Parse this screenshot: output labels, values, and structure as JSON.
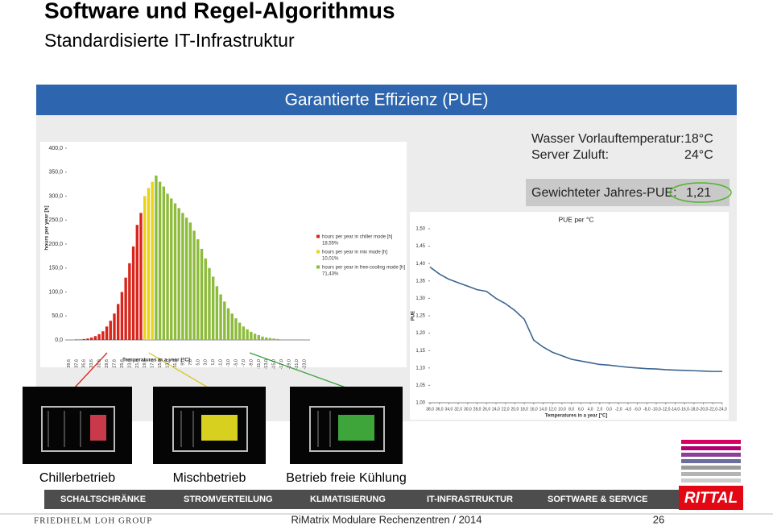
{
  "header": {
    "title": "Software und Regel-Algorithmus",
    "subtitle": "Standardisierte IT-Infrastruktur"
  },
  "panel": {
    "title": "Garantierte Effizienz (PUE)",
    "settings": [
      {
        "label": "Wasser Vorlauftemperatur:",
        "value": "18°C"
      },
      {
        "label": "Server Zuluft:",
        "value": "24°C"
      }
    ],
    "pue": {
      "label": "Gewichteter Jahres-PUE:",
      "value": "1,21"
    }
  },
  "chart_data": [
    {
      "type": "bar",
      "x_label": "Temperatures in a year [°C]",
      "y_label": "hours per year [h]",
      "categories": [
        "39,6",
        null,
        "37,6",
        null,
        "35,6",
        null,
        "33,6",
        null,
        "31,6",
        null,
        "29,6",
        null,
        "27,6",
        null,
        "25,6",
        null,
        "23,6",
        null,
        "21,6",
        null,
        "19,6",
        null,
        "17,6",
        null,
        "15,0",
        null,
        "13,0",
        null,
        "11,0",
        null,
        "9,0",
        null,
        "7,0",
        null,
        "5,0",
        null,
        "3,0",
        null,
        "1,0",
        null,
        "-1,0",
        null,
        "-3,0",
        null,
        "-5,0",
        null,
        "-7,0",
        null,
        "-9,0",
        null,
        "-11,0",
        null,
        "-13,0",
        null,
        "-15,0",
        null,
        "-17,0",
        null,
        "-19,0",
        null,
        "-21,0",
        null,
        "-23,0",
        null
      ],
      "series": [
        {
          "name": "hours per year in chiller mode [h]",
          "share": "18,55%",
          "color": "#d9261c",
          "values": [
            0,
            0,
            1,
            1,
            2,
            3,
            5,
            8,
            12,
            18,
            28,
            40,
            55,
            75,
            100,
            130,
            160,
            195,
            240,
            265,
            null,
            null,
            null,
            null,
            null,
            null,
            null,
            null,
            null,
            null,
            null,
            null,
            null,
            null,
            null,
            null,
            null,
            null,
            null,
            null,
            null,
            null,
            null,
            null,
            null,
            null,
            null,
            null,
            null,
            null,
            null,
            null,
            null,
            null,
            null,
            null,
            null,
            null,
            null,
            null,
            null,
            null,
            null,
            null
          ]
        },
        {
          "name": "hours per year in mix mode [h]",
          "share": "10,01%",
          "color": "#e8d21a",
          "values": [
            null,
            null,
            null,
            null,
            null,
            null,
            null,
            null,
            null,
            null,
            null,
            null,
            null,
            null,
            null,
            null,
            null,
            null,
            null,
            null,
            300,
            317,
            330,
            null,
            null,
            null,
            null,
            null,
            null,
            null,
            null,
            null,
            null,
            null,
            null,
            null,
            null,
            null,
            null,
            null,
            null,
            null,
            null,
            null,
            null,
            null,
            null,
            null,
            null,
            null,
            null,
            null,
            null,
            null,
            null,
            null,
            null,
            null,
            null,
            null,
            null,
            null,
            null,
            null
          ]
        },
        {
          "name": "hours per year in free-cooling mode [h]",
          "share": "71,43%",
          "color": "#8dbb3c",
          "values": [
            null,
            null,
            null,
            null,
            null,
            null,
            null,
            null,
            null,
            null,
            null,
            null,
            null,
            null,
            null,
            null,
            null,
            null,
            null,
            null,
            null,
            null,
            null,
            343,
            330,
            320,
            305,
            295,
            285,
            275,
            265,
            255,
            245,
            228,
            210,
            190,
            170,
            150,
            132,
            112,
            95,
            80,
            66,
            55,
            45,
            36,
            28,
            22,
            17,
            13,
            10,
            7,
            5,
            4,
            3,
            2,
            1,
            1,
            1,
            0,
            0,
            0,
            0,
            0
          ]
        }
      ],
      "ylim": [
        0,
        400
      ],
      "yticks": [
        {
          "value": 0,
          "label": "0,0"
        },
        {
          "value": 50,
          "label": "50,0"
        },
        {
          "value": 100,
          "label": "100,0"
        },
        {
          "value": 150,
          "label": "150,0"
        },
        {
          "value": 200,
          "label": "200,0"
        },
        {
          "value": 250,
          "label": "250,0"
        },
        {
          "value": 300,
          "label": "300,0"
        },
        {
          "value": 350,
          "label": "350,0"
        },
        {
          "value": 400,
          "label": "400,0"
        }
      ]
    },
    {
      "type": "line",
      "title": "PUE per °C",
      "x_label": "Temperatures in a year [°C]",
      "y_label": "PUE",
      "x": [
        38,
        36,
        34,
        32,
        30,
        28,
        26,
        24,
        22,
        20,
        18,
        16,
        14,
        12,
        10,
        8,
        6,
        4,
        2,
        0,
        -2,
        -4,
        -6,
        -8,
        -10,
        -12,
        -14,
        -16,
        -18,
        -20,
        -22,
        -24
      ],
      "series": [
        {
          "name": "PUE",
          "color": "#3b6592",
          "values": [
            1.39,
            1.37,
            1.355,
            1.345,
            1.335,
            1.325,
            1.32,
            1.3,
            1.285,
            1.265,
            1.24,
            1.18,
            1.16,
            1.145,
            1.135,
            1.125,
            1.12,
            1.115,
            1.11,
            1.108,
            1.105,
            1.102,
            1.1,
            1.098,
            1.097,
            1.095,
            1.094,
            1.093,
            1.092,
            1.091,
            1.09,
            1.09
          ]
        }
      ],
      "xlim": [
        38,
        -24
      ],
      "xticks": [
        {
          "value": 38,
          "label": "38,0"
        },
        {
          "value": 36,
          "label": "36,0"
        },
        {
          "value": 34,
          "label": "34,0"
        },
        {
          "value": 32,
          "label": "32,0"
        },
        {
          "value": 30,
          "label": "30,0"
        },
        {
          "value": 28,
          "label": "28,0"
        },
        {
          "value": 26,
          "label": "26,0"
        },
        {
          "value": 24,
          "label": "24,0"
        },
        {
          "value": 22,
          "label": "22,0"
        },
        {
          "value": 20,
          "label": "20,0"
        },
        {
          "value": 18,
          "label": "18,0"
        },
        {
          "value": 16,
          "label": "16,0"
        },
        {
          "value": 14,
          "label": "14,0"
        },
        {
          "value": 12,
          "label": "12,0"
        },
        {
          "value": 10,
          "label": "10,0"
        },
        {
          "value": 8,
          "label": "8,0"
        },
        {
          "value": 6,
          "label": "6,0"
        },
        {
          "value": 4,
          "label": "4,0"
        },
        {
          "value": 2,
          "label": "2,0"
        },
        {
          "value": 0,
          "label": "0,0"
        },
        {
          "value": -2,
          "label": "-2,0"
        },
        {
          "value": -4,
          "label": "-4,0"
        },
        {
          "value": -6,
          "label": "-6,0"
        },
        {
          "value": -8,
          "label": "-8,0"
        },
        {
          "value": -10,
          "label": "-10,0"
        },
        {
          "value": -12,
          "label": "-12,0"
        },
        {
          "value": -14,
          "label": "-14,0"
        },
        {
          "value": -16,
          "label": "-16,0"
        },
        {
          "value": -18,
          "label": "-18,0"
        },
        {
          "value": -20,
          "label": "-20,0"
        },
        {
          "value": -22,
          "label": "-22,0"
        },
        {
          "value": -24,
          "label": "-24,0"
        }
      ],
      "ylim": [
        1.0,
        1.5
      ],
      "yticks": [
        {
          "value": 1.0,
          "label": "1,00"
        },
        {
          "value": 1.05,
          "label": "1,05"
        },
        {
          "value": 1.1,
          "label": "1,10"
        },
        {
          "value": 1.15,
          "label": "1,15"
        },
        {
          "value": 1.2,
          "label": "1,20"
        },
        {
          "value": 1.25,
          "label": "1,25"
        },
        {
          "value": 1.3,
          "label": "1,30"
        },
        {
          "value": 1.35,
          "label": "1,35"
        },
        {
          "value": 1.4,
          "label": "1,40"
        },
        {
          "value": 1.45,
          "label": "1,45"
        },
        {
          "value": 1.5,
          "label": "1,50"
        }
      ]
    }
  ],
  "photos": {
    "captions": [
      "Chillerbetrieb",
      "Mischbetrieb",
      "Betrieb freie Kühlung"
    ]
  },
  "navigation": {
    "items": [
      "SCHALTSCHRÄNKE",
      "STROMVERTEILUNG",
      "KLIMATISIERUNG",
      "IT-INFRASTRUKTUR",
      "SOFTWARE & SERVICE"
    ]
  },
  "logo": "RITTAL",
  "footer": {
    "group": "FRIEDHELM LOH GROUP",
    "text": "RiMatrix Modulare Rechenzentren / 2014",
    "page": "26"
  }
}
